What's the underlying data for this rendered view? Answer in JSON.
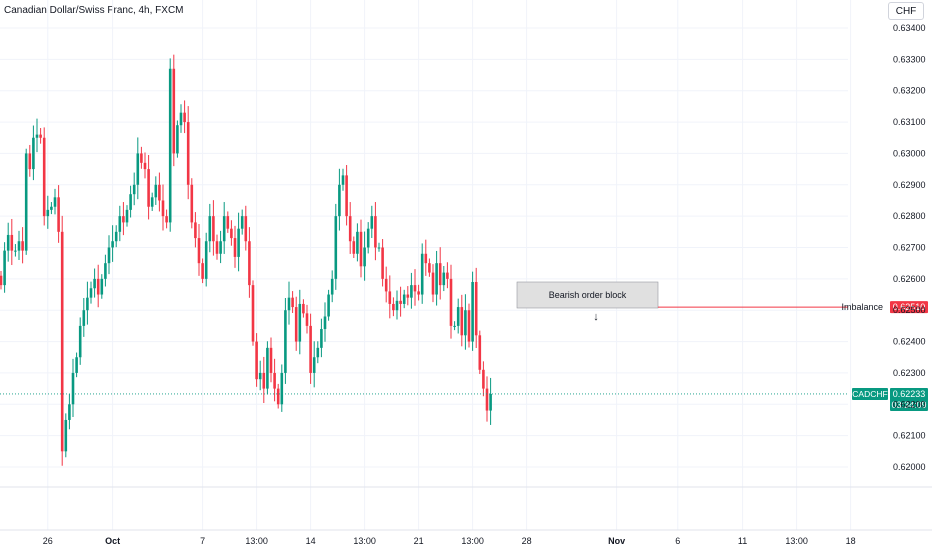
{
  "title": "Canadian Dollar/Swiss Franc, 4h, FXCM",
  "currency": "CHF",
  "colors": {
    "up": "#089981",
    "down": "#f23645",
    "grid": "#f0f3fa",
    "imbalance": "#f23645",
    "order_block": "#e0e0e0"
  },
  "chart_data": {
    "type": "candlestick",
    "symbol": "CADCHF",
    "ylim": [
      0.6192,
      0.6346
    ],
    "y_ticks": [
      "0.63400",
      "0.63300",
      "0.63200",
      "0.63100",
      "0.63000",
      "0.62900",
      "0.62800",
      "0.62700",
      "0.62600",
      "0.62500",
      "0.62400",
      "0.62300",
      "0.62200",
      "0.62100",
      "0.62000"
    ],
    "x_ticks": [
      {
        "label": "26",
        "bold": false,
        "index": 13
      },
      {
        "label": "Oct",
        "bold": true,
        "index": 31
      },
      {
        "label": "7",
        "bold": false,
        "index": 56
      },
      {
        "label": "13:00",
        "bold": false,
        "index": 71
      },
      {
        "label": "14",
        "bold": false,
        "index": 86
      },
      {
        "label": "13:00",
        "bold": false,
        "index": 101
      },
      {
        "label": "21",
        "bold": false,
        "index": 116
      },
      {
        "label": "13:00",
        "bold": false,
        "index": 131
      },
      {
        "label": "28",
        "bold": false,
        "index": 146
      },
      {
        "label": "Nov",
        "bold": true,
        "index": 171
      },
      {
        "label": "6",
        "bold": false,
        "index": 188
      },
      {
        "label": "11",
        "bold": false,
        "index": 206
      },
      {
        "label": "13:00",
        "bold": false,
        "index": 221
      },
      {
        "label": "18",
        "bold": false,
        "index": 236
      }
    ],
    "closes": [
      0.6258,
      0.6269,
      0.6274,
      0.6269,
      0.6269,
      0.6272,
      0.6269,
      0.63,
      0.6295,
      0.6305,
      0.6306,
      0.6305,
      0.628,
      0.6282,
      0.6283,
      0.6286,
      0.6275,
      0.6205,
      0.6215,
      0.622,
      0.623,
      0.6235,
      0.6245,
      0.625,
      0.6254,
      0.6257,
      0.626,
      0.6255,
      0.626,
      0.6265,
      0.627,
      0.6272,
      0.6275,
      0.628,
      0.6278,
      0.6282,
      0.6287,
      0.629,
      0.63,
      0.6297,
      0.6295,
      0.6283,
      0.6286,
      0.629,
      0.6285,
      0.628,
      0.6278,
      0.6327,
      0.63,
      0.6309,
      0.6313,
      0.631,
      0.629,
      0.6278,
      0.6273,
      0.6265,
      0.626,
      0.6272,
      0.628,
      0.6272,
      0.6268,
      0.6272,
      0.628,
      0.6276,
      0.6273,
      0.6267,
      0.6276,
      0.628,
      0.6272,
      0.6258,
      0.624,
      0.6228,
      0.623,
      0.6225,
      0.6238,
      0.623,
      0.6225,
      0.622,
      0.623,
      0.625,
      0.6254,
      0.6251,
      0.624,
      0.6252,
      0.6249,
      0.6245,
      0.623,
      0.6235,
      0.6238,
      0.6244,
      0.6248,
      0.6255,
      0.626,
      0.628,
      0.629,
      0.6293,
      0.628,
      0.6272,
      0.6268,
      0.6275,
      0.6264,
      0.627,
      0.6276,
      0.628,
      0.627,
      0.627,
      0.626,
      0.6256,
      0.6252,
      0.625,
      0.6253,
      0.6252,
      0.6255,
      0.6254,
      0.6258,
      0.6256,
      0.6255,
      0.6268,
      0.6265,
      0.6262,
      0.6255,
      0.6265,
      0.6258,
      0.6262,
      0.626,
      0.6245,
      0.6245,
      0.6251,
      0.6242,
      0.625,
      0.624,
      0.6259,
      0.6242,
      0.6231,
      0.6225,
      0.6218,
      0.62233
    ],
    "imbalance": {
      "label": "Imbalance",
      "value": "0.62510"
    },
    "current": {
      "label": "CADCHF",
      "value": "0.62233",
      "countdown": "03:34:09"
    },
    "annotation": {
      "text": "Bearish order block",
      "arrow": "↓"
    }
  }
}
